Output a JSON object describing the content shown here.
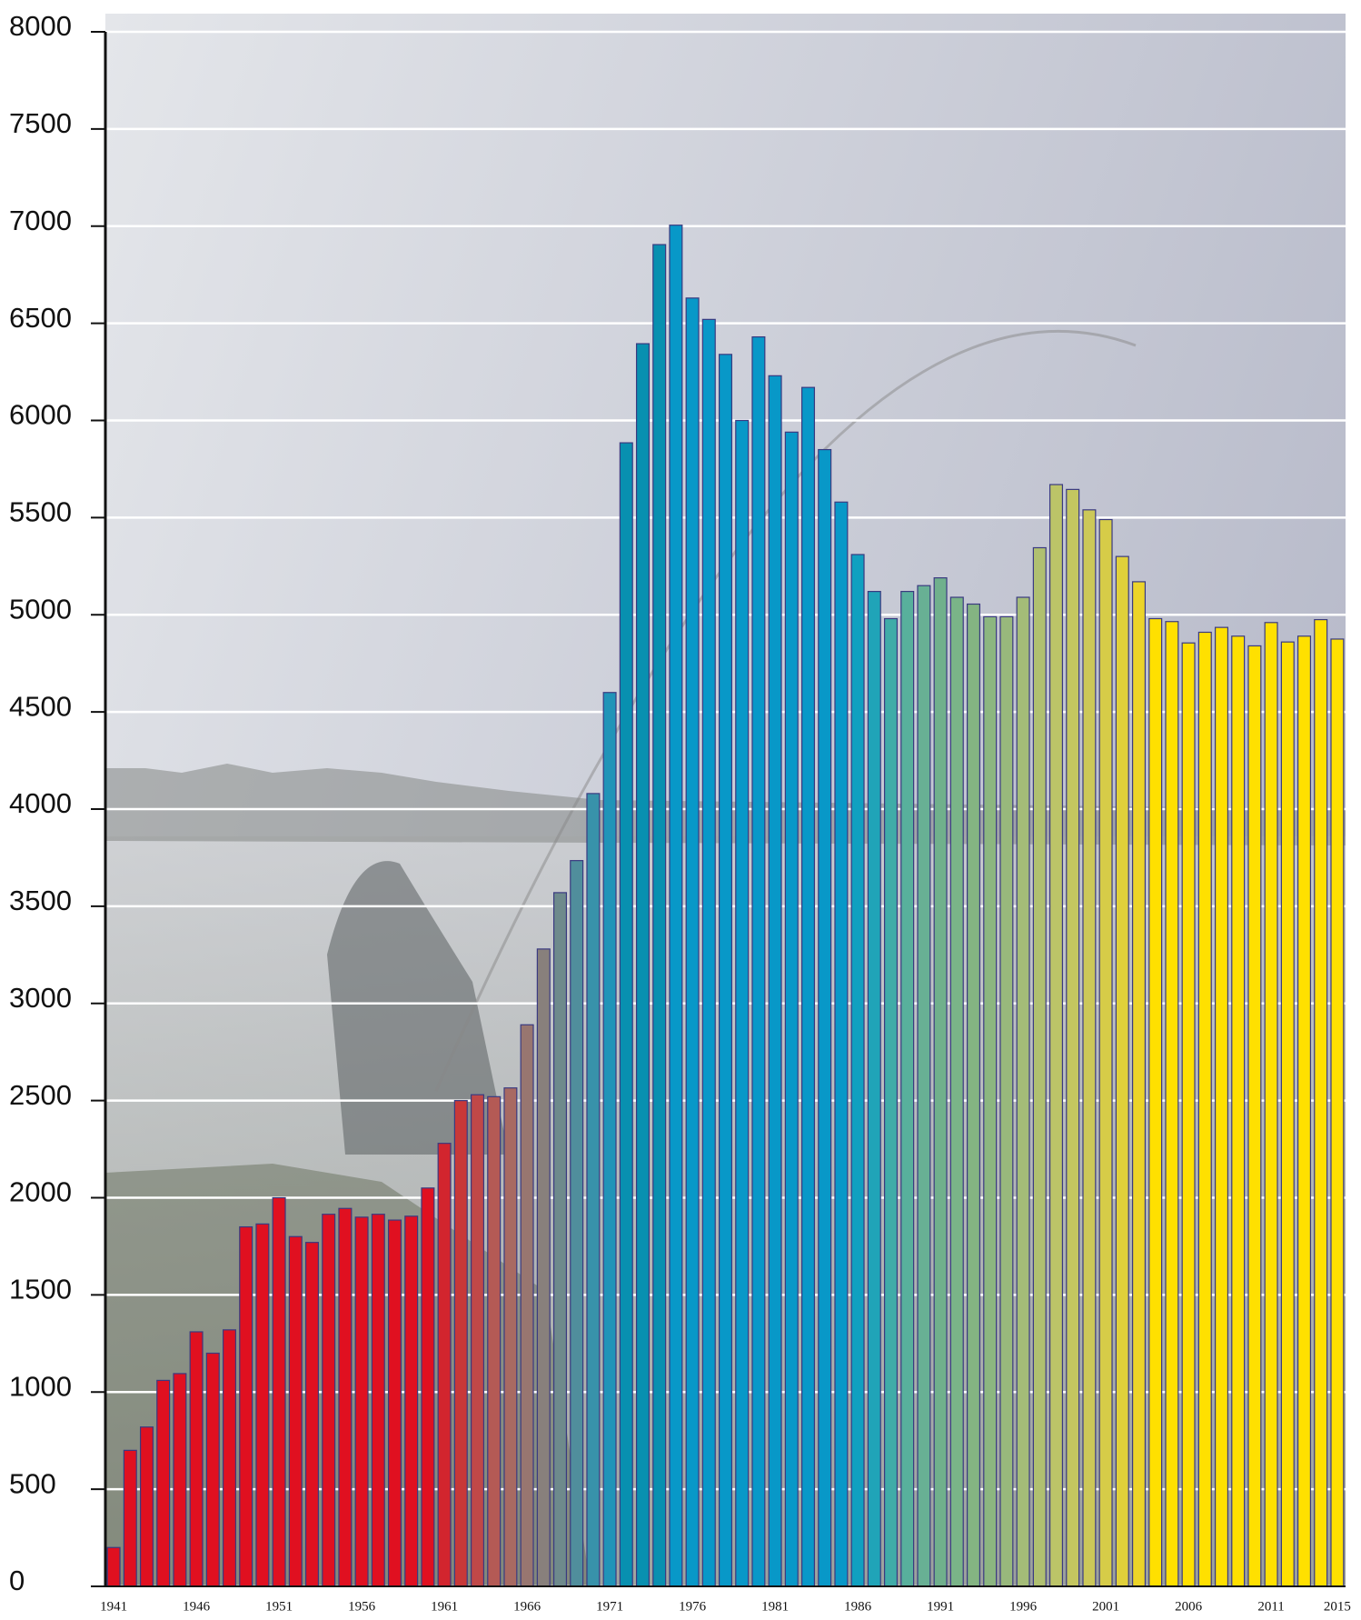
{
  "chart_data": {
    "type": "bar",
    "categories": [
      1941,
      null,
      null,
      null,
      null,
      1946,
      null,
      null,
      null,
      null,
      1951,
      null,
      null,
      null,
      null,
      1956,
      null,
      null,
      null,
      null,
      1961,
      null,
      null,
      null,
      null,
      1966,
      null,
      null,
      null,
      null,
      1971,
      null,
      null,
      null,
      null,
      1976,
      null,
      null,
      null,
      null,
      1981,
      null,
      null,
      null,
      null,
      1986,
      null,
      null,
      null,
      null,
      1991,
      null,
      null,
      null,
      null,
      1996,
      null,
      null,
      null,
      null,
      2001,
      null,
      null,
      null,
      null,
      2006,
      null,
      null,
      null,
      null,
      2011,
      null,
      null,
      null,
      2015
    ],
    "values": [
      200,
      700,
      820,
      1060,
      1095,
      1310,
      1200,
      1320,
      1850,
      1865,
      2000,
      1800,
      1770,
      1915,
      1945,
      1900,
      1915,
      1885,
      1905,
      2050,
      2280,
      2500,
      2530,
      2520,
      2565,
      2890,
      3280,
      3570,
      3735,
      4080,
      4600,
      5885,
      6395,
      6905,
      7005,
      6630,
      6520,
      6340,
      6000,
      6430,
      6230,
      5940,
      6170,
      5850,
      5580,
      5310,
      5120,
      4980,
      5120,
      5150,
      5190,
      5090,
      5055,
      4990,
      4990,
      5090,
      5345,
      5670,
      5645,
      5540,
      5490,
      5300,
      5170,
      4980,
      4965,
      4855,
      4910,
      4935,
      4890,
      4840,
      4960,
      4860,
      4890,
      4975,
      4875
    ],
    "colors": [
      "#e01020",
      "#e01020",
      "#e01020",
      "#e01020",
      "#e01020",
      "#e01020",
      "#e01020",
      "#e01020",
      "#e01020",
      "#e01020",
      "#e01020",
      "#e01020",
      "#e01020",
      "#e01020",
      "#e01020",
      "#e01020",
      "#e01020",
      "#e01020",
      "#e01020",
      "#e01020",
      "#d2252e",
      "#c83838",
      "#c04848",
      "#b45a55",
      "#a86a62",
      "#987670",
      "#88807c",
      "#6e8a8c",
      "#508e9c",
      "#3892aa",
      "#2094b8",
      "#0890b0",
      "#0890b0",
      "#0890b0",
      "#0898c8",
      "#0898c8",
      "#0898c8",
      "#0898c8",
      "#0898c8",
      "#0898c8",
      "#0898c8",
      "#0898c8",
      "#0898c8",
      "#0898c8",
      "#0898c8",
      "#10a0c0",
      "#20a4b8",
      "#40aca8",
      "#58b09c",
      "#68b094",
      "#70b08c",
      "#7ab488",
      "#84b482",
      "#8cb680",
      "#98b87c",
      "#a4bc78",
      "#b0c070",
      "#bcc468",
      "#c4c660",
      "#ccc858",
      "#d6cc48",
      "#e0d03a",
      "#ecd428",
      "#ffe000",
      "#ffe000",
      "#ffe000",
      "#ffe000",
      "#ffe000",
      "#ffe000",
      "#ffe000",
      "#ffe000",
      "#ffe000",
      "#ffe000",
      "#ffe000",
      "#ffe000"
    ],
    "ylim": [
      0,
      8000
    ],
    "yticks": [
      0,
      500,
      1000,
      1500,
      2000,
      2500,
      3000,
      3500,
      4000,
      4500,
      5000,
      5500,
      6000,
      6500,
      7000,
      7500,
      8000
    ],
    "grid": true
  }
}
